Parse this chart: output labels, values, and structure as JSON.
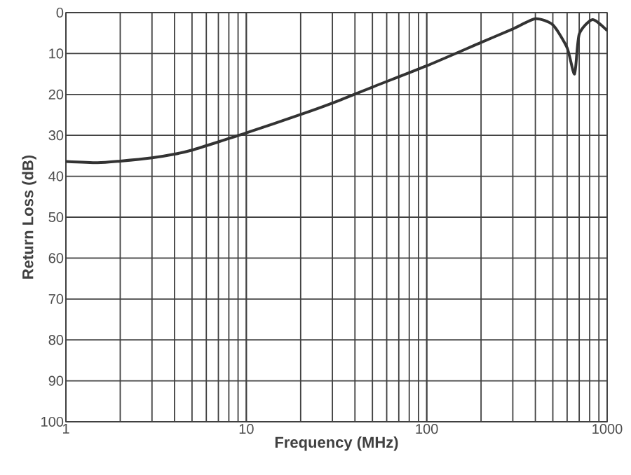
{
  "chart_data": {
    "type": "line",
    "xlabel": "Frequency (MHz)",
    "ylabel": "Return Loss (dB)",
    "log": "x",
    "grid": true,
    "color": "#333333",
    "x": [
      1,
      1.5,
      2,
      3,
      4,
      5,
      7,
      10,
      20,
      30,
      50,
      100,
      200,
      300,
      400,
      500,
      600,
      660,
      700,
      830,
      1000
    ],
    "values": [
      36.4,
      36.7,
      36.3,
      35.5,
      34.6,
      33.6,
      31.6,
      29.4,
      24.9,
      22.1,
      18.2,
      13,
      7.3,
      4,
      1.5,
      3,
      8.6,
      15,
      5.3,
      1.7,
      4.4
    ],
    "xlim": [
      1,
      1000
    ],
    "ylim": [
      100,
      0
    ],
    "xticks": [
      1,
      10,
      100,
      1000
    ],
    "yticks": [
      0,
      10,
      20,
      30,
      40,
      50,
      60,
      70,
      80,
      90,
      100
    ]
  }
}
